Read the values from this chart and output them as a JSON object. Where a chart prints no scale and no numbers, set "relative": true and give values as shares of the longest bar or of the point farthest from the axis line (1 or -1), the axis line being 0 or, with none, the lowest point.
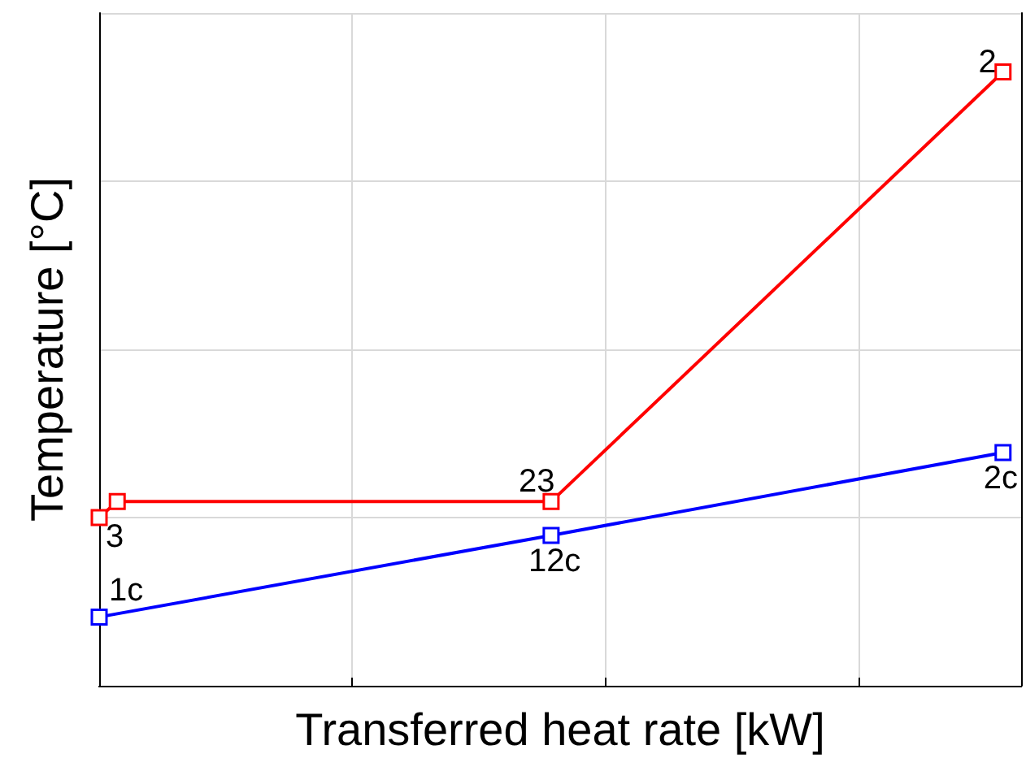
{
  "chart_data": {
    "type": "line",
    "relative": true,
    "xlabel": "Transferred heat rate [kW]",
    "ylabel": "Temperature [°C]",
    "marker": "square",
    "line_style": "solid",
    "grid": true,
    "categories": [
      null,
      null,
      null,
      null,
      null,
      null,
      null,
      null,
      null,
      null,
      null,
      null,
      null,
      null,
      null,
      null,
      null,
      null,
      null,
      null,
      null,
      null,
      null,
      null,
      null,
      null,
      null,
      null,
      null,
      null,
      null,
      null,
      null,
      null,
      null,
      null,
      null,
      null,
      null,
      null,
      null,
      null,
      null,
      null,
      null,
      null,
      null,
      null,
      null,
      null,
      null,
      null
    ],
    "series": [
      {
        "color": "#ff0000",
        "values": [
          0.274,
          0.3,
          null,
          null,
          null,
          null,
          null,
          null,
          null,
          null,
          null,
          null,
          null,
          null,
          null,
          null,
          null,
          null,
          null,
          null,
          null,
          null,
          null,
          null,
          null,
          0.3,
          null,
          null,
          null,
          null,
          null,
          null,
          null,
          null,
          null,
          null,
          null,
          null,
          null,
          null,
          null,
          null,
          null,
          null,
          null,
          null,
          null,
          null,
          null,
          null,
          1,
          null
        ]
      },
      {
        "color": "#0000ff",
        "values": [
          0.112,
          null,
          null,
          null,
          null,
          null,
          null,
          null,
          null,
          null,
          null,
          null,
          null,
          null,
          null,
          null,
          null,
          null,
          null,
          null,
          null,
          null,
          null,
          null,
          null,
          0.245,
          null,
          null,
          null,
          null,
          null,
          null,
          null,
          null,
          null,
          null,
          null,
          null,
          null,
          null,
          null,
          null,
          null,
          null,
          null,
          null,
          null,
          null,
          null,
          null,
          0.38,
          null
        ]
      }
    ],
    "annotations": [
      "3",
      "23",
      "2",
      "1c",
      "12c",
      "2c"
    ]
  }
}
